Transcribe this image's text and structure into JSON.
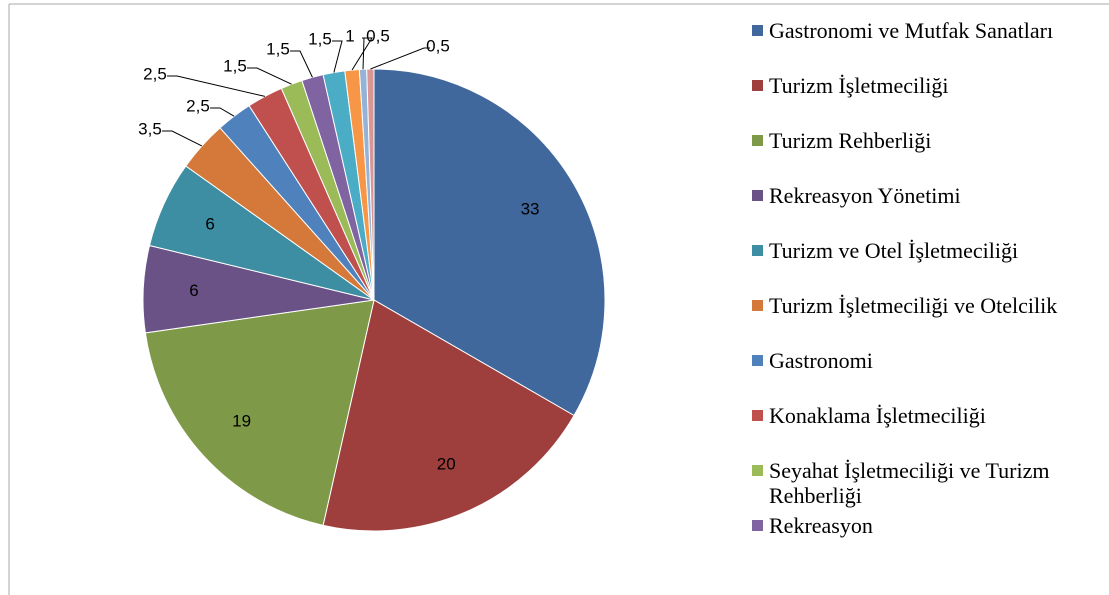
{
  "chart_data": {
    "type": "pie",
    "categories": [
      "Gastronomi ve Mutfak Sanatları",
      "Turizm İşletmeciliği",
      "Turizm Rehberliği",
      "Rekreasyon Yönetimi",
      "Turizm ve Otel İşletmeciliği",
      "Turizm İşletmeciliği ve Otelcilik",
      "Gastronomi",
      "Konaklama İşletmeciliği",
      "Seyahat İşletmeciliği ve Turizm Rehberliği",
      "Rekreasyon",
      null,
      null,
      null,
      null
    ],
    "values": [
      33,
      20,
      19,
      6,
      6,
      3.5,
      2.5,
      2.5,
      1.5,
      1.5,
      1.5,
      1,
      0.5,
      0.5
    ],
    "value_labels": [
      "33",
      "20",
      "19",
      "6",
      "6",
      "3,5",
      "2,5",
      "2,5",
      "1,5",
      "1,5",
      "1,5",
      "1",
      "0,5",
      "0,5"
    ],
    "colors": [
      "#41689c",
      "#9e3f3e",
      "#7e9a48",
      "#6a5287",
      "#3d8ea3",
      "#d5793a",
      "#4f81bd",
      "#c0504d",
      "#9bbb59",
      "#8064a2",
      "#4bacc6",
      "#f79646",
      "#95b3d7",
      "#d99694"
    ],
    "legend": "right"
  }
}
